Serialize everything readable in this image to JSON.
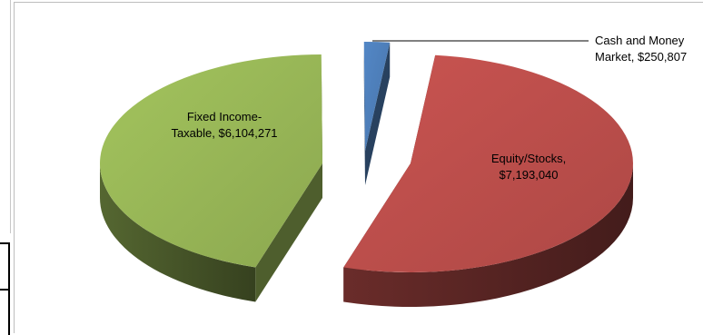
{
  "chart_data": {
    "type": "pie",
    "style": "3d-exploded",
    "slices": [
      {
        "name": "Cash and Money Market",
        "value": 250807,
        "label_line1": "Cash and Money",
        "label_line2": "Market,  $250,807",
        "color": "#4f81bd"
      },
      {
        "name": "Equity/Stocks",
        "value": 7193040,
        "label_line1": "Equity/Stocks,",
        "label_line2": "$7,193,040",
        "color": "#c0504d"
      },
      {
        "name": "Fixed Income-Taxable",
        "value": 6104271,
        "label_line1": "Fixed Income-",
        "label_line2": "Taxable,  $6,104,271",
        "color": "#9bbb59"
      }
    ]
  }
}
